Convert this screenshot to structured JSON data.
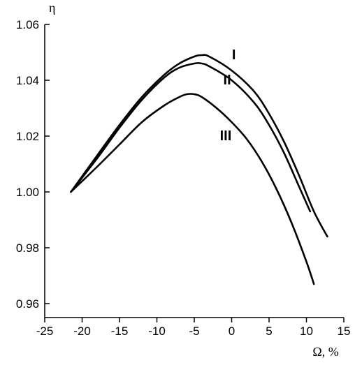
{
  "chart_data": {
    "type": "line",
    "title": "",
    "xlabel": "Ω, %",
    "ylabel": "η",
    "xlim": [
      -25,
      15
    ],
    "ylim": [
      0.955,
      1.06
    ],
    "x_ticks": [
      -25,
      -20,
      -15,
      -10,
      -5,
      0,
      5,
      10,
      15
    ],
    "x_tick_labels": [
      "-25",
      "-20",
      "-15",
      "-10",
      "-5",
      "0",
      "5",
      "10",
      "15"
    ],
    "y_ticks": [
      0.96,
      0.98,
      1.0,
      1.02,
      1.04,
      1.06
    ],
    "y_tick_labels": [
      "0.96",
      "0.98",
      "1.00",
      "1.02",
      "1.04",
      "1.06"
    ],
    "grid": false,
    "series": [
      {
        "name": "I",
        "x": [
          -21.5,
          -18,
          -15,
          -12,
          -9,
          -7,
          -5,
          -4,
          -3,
          0,
          3,
          5,
          7,
          9,
          11,
          12.8
        ],
        "y": [
          1.0,
          1.013,
          1.024,
          1.034,
          1.042,
          1.046,
          1.0485,
          1.049,
          1.0485,
          1.0435,
          1.036,
          1.028,
          1.018,
          1.006,
          0.993,
          0.984
        ]
      },
      {
        "name": "II",
        "x": [
          -21.5,
          -18,
          -15,
          -12,
          -9,
          -7,
          -5,
          -4,
          -3,
          0,
          3,
          5,
          7,
          9,
          10.5
        ],
        "y": [
          1.0,
          1.012,
          1.023,
          1.033,
          1.041,
          1.0445,
          1.046,
          1.046,
          1.045,
          1.04,
          1.032,
          1.024,
          1.014,
          1.002,
          0.993
        ]
      },
      {
        "name": "III",
        "x": [
          -21.5,
          -18,
          -15,
          -12,
          -9,
          -7,
          -6,
          -5,
          -4,
          -2,
          0,
          2,
          4,
          6,
          8,
          10,
          11
        ],
        "y": [
          1.0,
          1.009,
          1.017,
          1.025,
          1.031,
          1.034,
          1.035,
          1.035,
          1.034,
          1.03,
          1.025,
          1.019,
          1.011,
          1.001,
          0.989,
          0.975,
          0.967
        ]
      }
    ],
    "curve_labels": [
      {
        "text": "I",
        "x": 0.3,
        "y": 1.0475
      },
      {
        "text": "II",
        "x": -0.6,
        "y": 1.0385
      },
      {
        "text": "III",
        "x": -0.8,
        "y": 1.0185
      }
    ]
  }
}
